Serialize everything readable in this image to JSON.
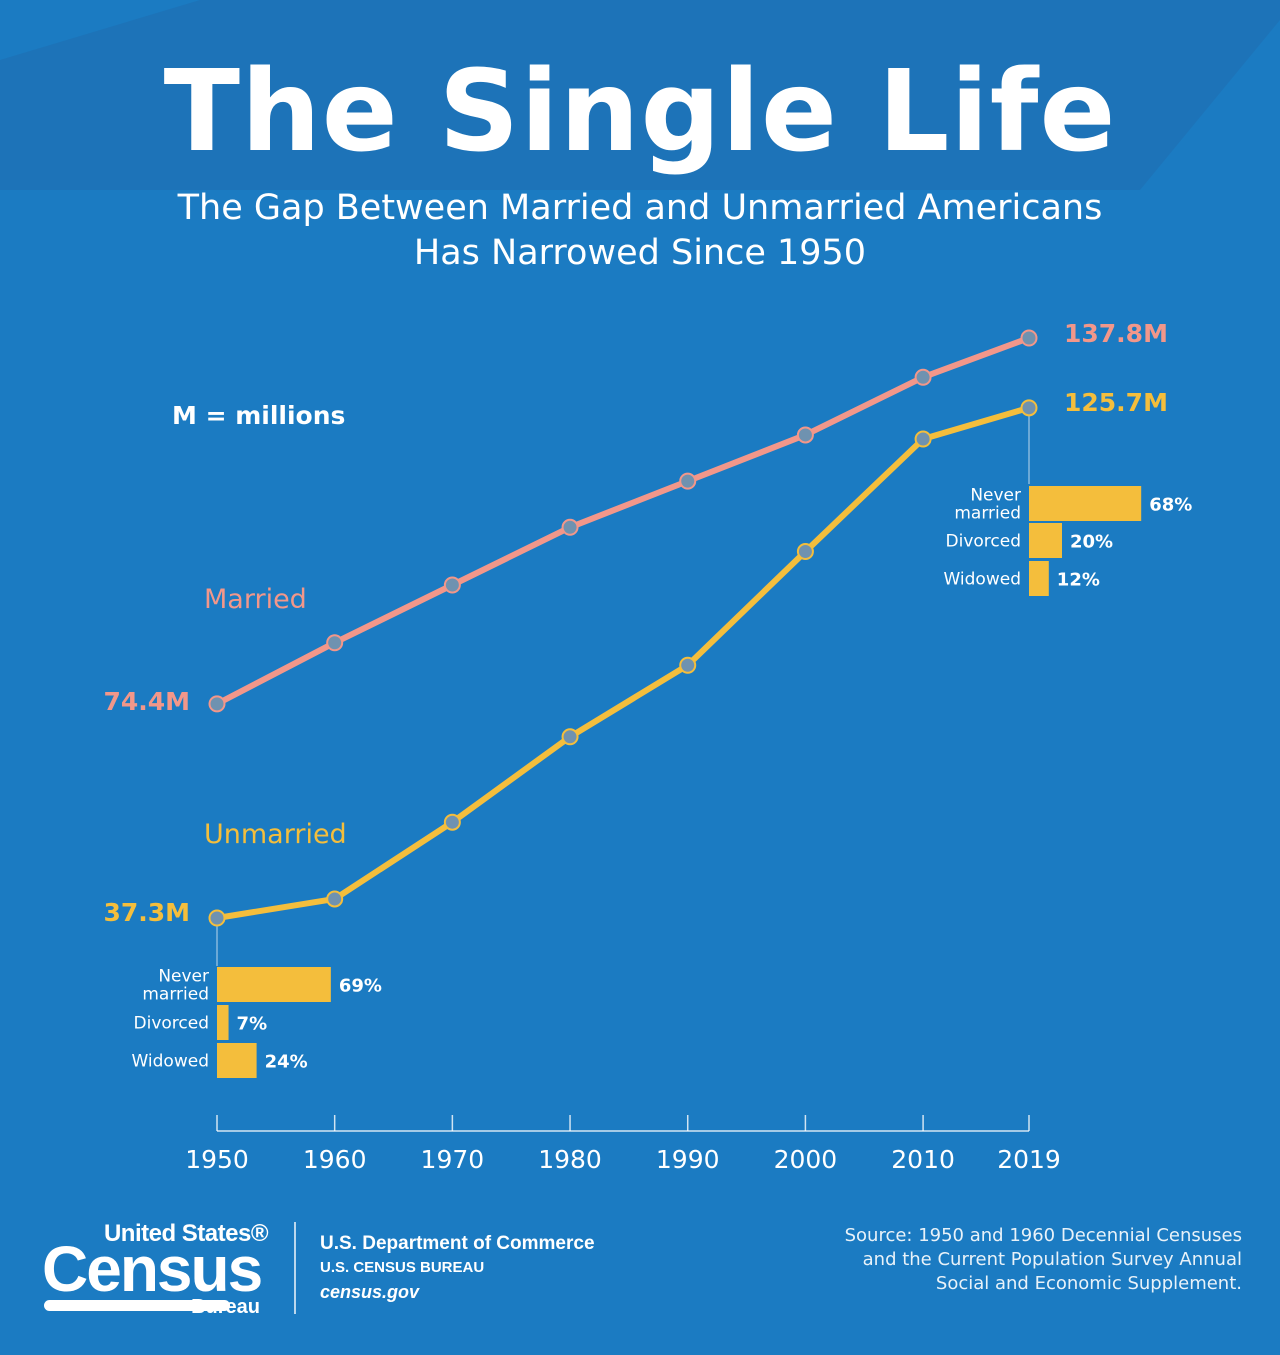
{
  "title": "The Single Life",
  "subtitle_line1": "The Gap Between Married and Unmarried Americans",
  "subtitle_line2": "Has Narrowed Since 1950",
  "units_note": "M = millions",
  "colors": {
    "background": "#1b7bc2",
    "married": "#f2978a",
    "unmarried": "#f4be3c",
    "marker": "#6f92b0"
  },
  "chart_data": {
    "type": "line",
    "x": [
      "1950",
      "1960",
      "1970",
      "1980",
      "1990",
      "2000",
      "2010",
      "2019"
    ],
    "series": [
      {
        "name": "Married",
        "values": [
          74.4,
          85.0,
          95.0,
          105.0,
          113.0,
          121.0,
          131.0,
          137.8
        ],
        "start_label": "74.4M",
        "end_label": "137.8M"
      },
      {
        "name": "Unmarried",
        "values": [
          37.3,
          40.6,
          53.9,
          68.7,
          81.1,
          100.8,
          120.3,
          125.7
        ],
        "start_label": "37.3M",
        "end_label": "125.7M"
      }
    ],
    "ylim": [
      30,
      145
    ],
    "grid": false,
    "breakdowns": [
      {
        "year": "1950",
        "items": [
          {
            "label": "Never married",
            "label_lines": [
              "Never",
              "married"
            ],
            "pct": 69,
            "text": "69%"
          },
          {
            "label": "Divorced",
            "label_lines": [
              "Divorced"
            ],
            "pct": 7,
            "text": "7%"
          },
          {
            "label": "Widowed",
            "label_lines": [
              "Widowed"
            ],
            "pct": 24,
            "text": "24%"
          }
        ]
      },
      {
        "year": "2019",
        "items": [
          {
            "label": "Never married",
            "label_lines": [
              "Never",
              "married"
            ],
            "pct": 68,
            "text": "68%"
          },
          {
            "label": "Divorced",
            "label_lines": [
              "Divorced"
            ],
            "pct": 20,
            "text": "20%"
          },
          {
            "label": "Widowed",
            "label_lines": [
              "Widowed"
            ],
            "pct": 12,
            "text": "12%"
          }
        ]
      }
    ]
  },
  "footer": {
    "logo_top": "United States®",
    "logo_main": "Census",
    "logo_bureau": "Bureau",
    "dept_line1": "U.S. Department of Commerce",
    "dept_line2": "U.S. CENSUS BUREAU",
    "dept_line3": "census.gov",
    "source_line1": "Source: 1950 and 1960 Decennial Censuses",
    "source_line2": "and the Current Population Survey Annual",
    "source_line3": "Social and Economic Supplement."
  }
}
